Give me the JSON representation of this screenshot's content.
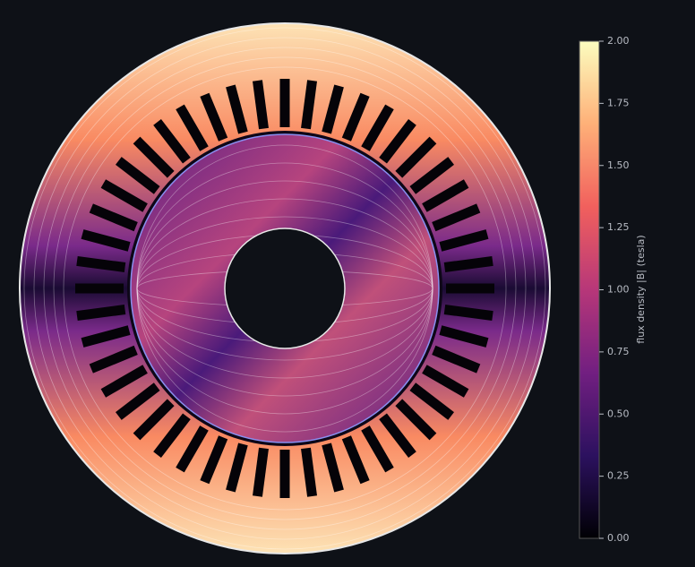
{
  "chart_data": {
    "type": "field",
    "colorbar_label": "flux density  |B|  (tesla)",
    "clim": [
      0,
      2
    ],
    "cticks": [
      {
        "value": 0,
        "label": "0.00"
      },
      {
        "value": 0.25,
        "label": "0.25"
      },
      {
        "value": 0.5,
        "label": "0.50"
      },
      {
        "value": 0.75,
        "label": "0.75"
      },
      {
        "value": 1,
        "label": "1.00"
      },
      {
        "value": 1.25,
        "label": "1.25"
      },
      {
        "value": 1.5,
        "label": "1.50"
      },
      {
        "value": 1.75,
        "label": "1.75"
      },
      {
        "value": 2,
        "label": "2.00"
      }
    ],
    "colormap": [
      "#000004",
      "#2c115f",
      "#721f81",
      "#b73779",
      "#f1605d",
      "#feb078",
      "#fcfdbf"
    ]
  }
}
